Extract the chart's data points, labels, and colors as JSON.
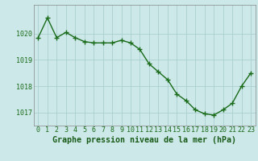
{
  "x": [
    0,
    1,
    2,
    3,
    4,
    5,
    6,
    7,
    8,
    9,
    10,
    11,
    12,
    13,
    14,
    15,
    16,
    17,
    18,
    19,
    20,
    21,
    22,
    23
  ],
  "y": [
    1019.85,
    1020.6,
    1019.85,
    1020.05,
    1019.85,
    1019.7,
    1019.65,
    1019.65,
    1019.65,
    1019.75,
    1019.65,
    1019.4,
    1018.85,
    1018.55,
    1018.25,
    1017.7,
    1017.45,
    1017.1,
    1016.95,
    1016.9,
    1017.1,
    1017.35,
    1018.0,
    1018.5
  ],
  "line_color": "#1a6b1a",
  "marker_color": "#1a6b1a",
  "bg_color": "#cce8e8",
  "grid_color": "#aacfcf",
  "axis_color": "#888888",
  "title": "Graphe pression niveau de la mer (hPa)",
  "title_color": "#1a5c1a",
  "ylim": [
    1016.5,
    1021.1
  ],
  "yticks": [
    1017,
    1018,
    1019,
    1020
  ],
  "xticks": [
    0,
    1,
    2,
    3,
    4,
    5,
    6,
    7,
    8,
    9,
    10,
    11,
    12,
    13,
    14,
    15,
    16,
    17,
    18,
    19,
    20,
    21,
    22,
    23
  ],
  "tick_fontsize": 6.0,
  "title_fontsize": 7.2,
  "marker_size": 2.5,
  "line_width": 1.0
}
